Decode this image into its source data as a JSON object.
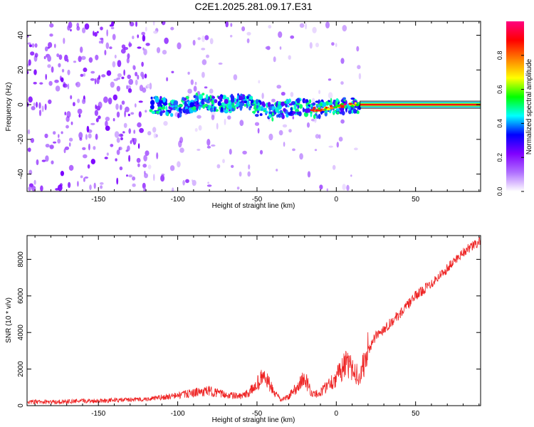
{
  "title": "C2E1.2025.281.09.17.E31",
  "chart_data": [
    {
      "type": "heatmap",
      "title": "C2E1.2025.281.09.17.E31",
      "xlabel": "Height of straight line (km)",
      "ylabel": "Frequency (Hz)",
      "xlim": [
        -195,
        91
      ],
      "ylim": [
        -50,
        48
      ],
      "xticks": [
        -150,
        -100,
        -50,
        0,
        50
      ],
      "yticks": [
        -40,
        -20,
        0,
        20,
        40
      ],
      "ridge": [
        {
          "x": -117,
          "f": 0
        },
        {
          "x": -100,
          "f": -2
        },
        {
          "x": -85,
          "f": 2
        },
        {
          "x": -70,
          "f": 0
        },
        {
          "x": -55,
          "f": 2
        },
        {
          "x": -50,
          "f": -2
        },
        {
          "x": -40,
          "f": -4
        },
        {
          "x": -25,
          "f": -1
        },
        {
          "x": -10,
          "f": -3
        },
        {
          "x": 0,
          "f": -1
        },
        {
          "x": 10,
          "f": 0
        },
        {
          "x": 15,
          "f": 0
        },
        {
          "x": 91,
          "f": 0
        }
      ],
      "colorbar": {
        "label": "Normalized spectral amplitude",
        "range": [
          0,
          1
        ],
        "ticks": [
          "0.0",
          "0.2",
          "0.4",
          "0.6",
          "0.8"
        ],
        "colors": [
          "#ffffff",
          "#b070ff",
          "#8000ff",
          "#0000ff",
          "#00ffff",
          "#00ff00",
          "#ffff00",
          "#ff8000",
          "#ff0000",
          "#ff0080"
        ]
      }
    },
    {
      "type": "line",
      "xlabel": "Height of straight line (km)",
      "ylabel": "SNR (10 * v/v)",
      "xlim": [
        -195,
        91
      ],
      "ylim": [
        0,
        9300
      ],
      "xticks": [
        -150,
        -100,
        -50,
        0,
        50
      ],
      "yticks": [
        0,
        2000,
        4000,
        6000,
        8000
      ],
      "color": "#ee2222",
      "series": [
        {
          "name": "SNR",
          "x": [
            -195,
            -180,
            -160,
            -140,
            -120,
            -110,
            -100,
            -90,
            -80,
            -70,
            -60,
            -55,
            -50,
            -46,
            -43,
            -40,
            -35,
            -30,
            -25,
            -20,
            -17,
            -15,
            -10,
            -5,
            0,
            5,
            10,
            15,
            20,
            25,
            30,
            40,
            50,
            60,
            70,
            80,
            91
          ],
          "y": [
            200,
            200,
            250,
            300,
            350,
            450,
            550,
            700,
            800,
            600,
            500,
            700,
            1200,
            1600,
            1300,
            800,
            300,
            500,
            1000,
            1500,
            1000,
            600,
            700,
            1200,
            1500,
            2300,
            2000,
            1600,
            3000,
            3800,
            4200,
            5000,
            6000,
            6700,
            7500,
            8400,
            9000
          ]
        }
      ]
    }
  ]
}
